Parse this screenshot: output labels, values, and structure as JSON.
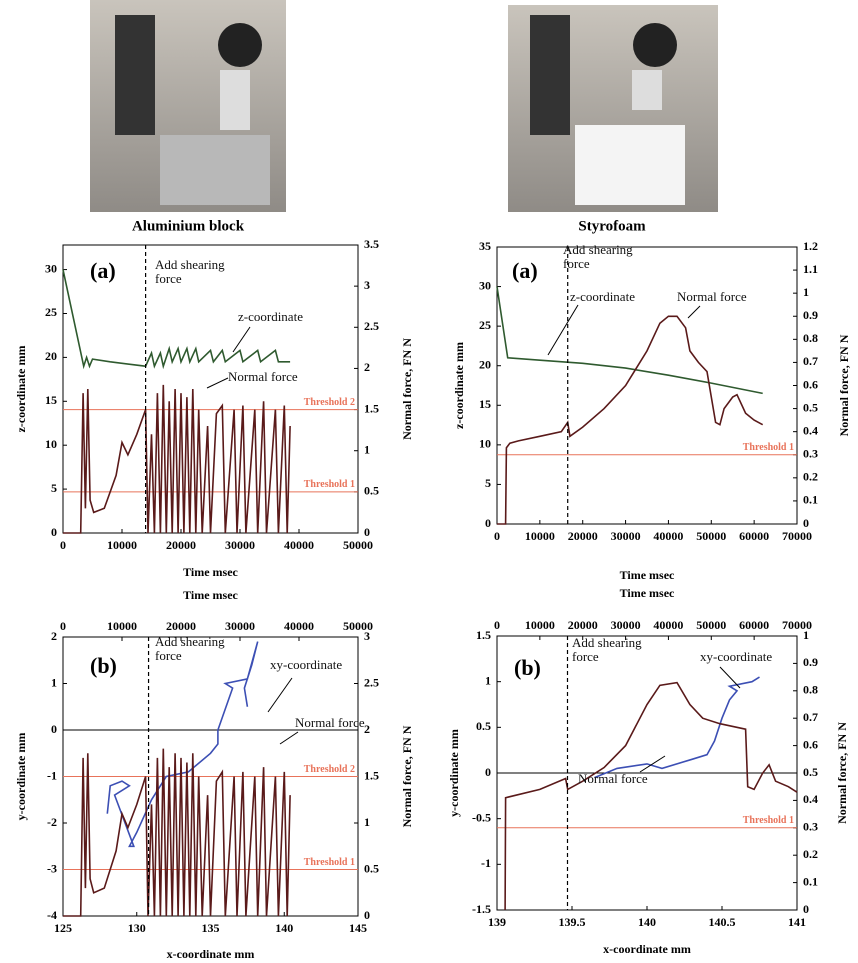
{
  "photos": [
    {
      "caption": "Aluminium block"
    },
    {
      "caption": "Styrofoam"
    }
  ],
  "chart_data": [
    {
      "type": "line",
      "panel_label": "(a)",
      "xlabel": "Time msec",
      "ylabel": "z-coordinate mm",
      "y2label": "Normal force, FN N",
      "xlim": [
        0,
        50000
      ],
      "xticks": [
        0,
        10000,
        20000,
        30000,
        40000,
        50000
      ],
      "ylim": [
        0,
        32.8
      ],
      "yticks": [
        0,
        5,
        10,
        15,
        20,
        25,
        30
      ],
      "y2lim": [
        0,
        3.5
      ],
      "y2ticks": [
        0,
        0.5,
        1,
        1.5,
        2,
        2.5,
        3,
        3.5
      ],
      "vline": {
        "x": 14000,
        "label": "Add shearing force"
      },
      "thresholds": [
        {
          "label": "Threshold 2",
          "value": 1.5,
          "axis": "y2",
          "color": "#e8735a"
        },
        {
          "label": "Threshold 1",
          "value": 0.5,
          "axis": "y2",
          "color": "#e8735a"
        }
      ],
      "series": [
        {
          "name": "z-coordinate",
          "color": "#2f5a2f",
          "axis": "y",
          "xaxis": "x",
          "x": [
            0,
            3500,
            4000,
            4500,
            5000,
            8000,
            14000,
            15000,
            15500,
            16500,
            17000,
            18000,
            18500,
            19500,
            20000,
            21000,
            21500,
            22500,
            23000,
            25000,
            25500,
            27000,
            27500,
            30000,
            30500,
            33000,
            33500,
            36000,
            36500,
            38500
          ],
          "values": [
            30,
            19,
            20,
            19,
            19.8,
            19.5,
            19,
            20.5,
            19,
            20.5,
            19,
            21,
            19.5,
            21,
            19.5,
            21,
            19.5,
            21,
            19.5,
            20.8,
            19.5,
            20.8,
            19.5,
            20.8,
            19.5,
            20.8,
            19.5,
            20.8,
            19.5,
            19.5
          ]
        },
        {
          "name": "Normal force",
          "color": "#5a1a1a",
          "axis": "y2",
          "xaxis": "x",
          "x": [
            0,
            3000,
            3400,
            3800,
            4200,
            4600,
            5200,
            7000,
            9000,
            10000,
            11000,
            12500,
            14000,
            14400,
            15000,
            15500,
            16000,
            16500,
            17000,
            17500,
            18000,
            18500,
            19000,
            19500,
            20000,
            20500,
            21000,
            21500,
            22000,
            22500,
            23000,
            23600,
            24500,
            25000,
            26000,
            27000,
            27500,
            29000,
            29500,
            30500,
            31000,
            32500,
            33000,
            34000,
            34500,
            36000,
            36500,
            37500,
            38000,
            38500
          ],
          "values": [
            0,
            0,
            1.7,
            0.3,
            1.75,
            0.4,
            0.25,
            0.3,
            0.7,
            1.1,
            0.95,
            1.2,
            1.5,
            0,
            1.2,
            0,
            1.7,
            0,
            1.8,
            0,
            1.6,
            0,
            1.75,
            0,
            1.7,
            0,
            1.65,
            0,
            1.75,
            0,
            1.5,
            0,
            1.3,
            0,
            1.45,
            1.55,
            0,
            1.5,
            0,
            1.55,
            0,
            1.5,
            0,
            1.6,
            0,
            1.5,
            0,
            1.55,
            0,
            1.3
          ]
        }
      ]
    },
    {
      "type": "line",
      "panel_label": "(a)",
      "xlabel": "Time msec",
      "ylabel": "z-coordinate mm",
      "y2label": "Normal force, FN N",
      "xlim": [
        0,
        70000
      ],
      "xticks": [
        0,
        10000,
        20000,
        30000,
        40000,
        50000,
        60000,
        70000
      ],
      "ylim": [
        0,
        35
      ],
      "yticks": [
        0,
        5,
        10,
        15,
        20,
        25,
        30,
        35
      ],
      "y2lim": [
        0,
        1.2
      ],
      "y2ticks": [
        0,
        0.1,
        0.2,
        0.3,
        0.4,
        0.5,
        0.6,
        0.7,
        0.8,
        0.9,
        1,
        1.1,
        1.2
      ],
      "vline": {
        "x": 16500,
        "label": "Add shearing force"
      },
      "thresholds": [
        {
          "label": "Threshold 1",
          "value": 0.3,
          "axis": "y2",
          "color": "#e8735a"
        }
      ],
      "series": [
        {
          "name": "z-coordinate",
          "color": "#2f5a2f",
          "axis": "y",
          "xaxis": "x",
          "x": [
            0,
            2500,
            10000,
            20000,
            30000,
            40000,
            50000,
            62000
          ],
          "values": [
            30,
            21,
            20.7,
            20.3,
            19.7,
            18.8,
            17.8,
            16.5
          ]
        },
        {
          "name": "Normal force",
          "color": "#5a1a1a",
          "axis": "y2",
          "xaxis": "x",
          "x": [
            0,
            2000,
            2200,
            3000,
            5000,
            10000,
            15000,
            16500,
            17000,
            20000,
            25000,
            30000,
            35000,
            38000,
            40000,
            42000,
            44000,
            45000,
            47000,
            49000,
            50000,
            51000,
            52000,
            53000,
            55000,
            56000,
            58000,
            60000,
            62000
          ],
          "values": [
            0,
            0,
            0.33,
            0.35,
            0.36,
            0.38,
            0.4,
            0.44,
            0.38,
            0.42,
            0.5,
            0.6,
            0.75,
            0.87,
            0.9,
            0.9,
            0.85,
            0.75,
            0.7,
            0.66,
            0.55,
            0.44,
            0.43,
            0.5,
            0.55,
            0.56,
            0.48,
            0.45,
            0.43
          ]
        }
      ]
    },
    {
      "type": "line",
      "panel_label": "(b)",
      "xlabel": "x-coordinate mm",
      "x2label": "Time msec",
      "ylabel": "y-coordinate mm",
      "y2label": "Normal force, FN N",
      "xlim": [
        125,
        145
      ],
      "xticks": [
        125,
        130,
        135,
        140,
        145
      ],
      "x2lim": [
        0,
        50000
      ],
      "x2ticks": [
        0,
        10000,
        20000,
        30000,
        40000,
        50000
      ],
      "ylim": [
        -4,
        2
      ],
      "yticks": [
        -4,
        -3,
        -2,
        -1,
        0,
        1,
        2
      ],
      "y2lim": [
        0,
        3
      ],
      "y2ticks": [
        0,
        0.5,
        1,
        1.5,
        2,
        2.5,
        3
      ],
      "vline": {
        "x": 130.8,
        "label": "Add shearing force"
      },
      "thresholds": [
        {
          "label": "Threshold 2",
          "value": 1.5,
          "axis": "y2",
          "color": "#e8735a"
        },
        {
          "label": "Threshold 1",
          "value": 0.5,
          "axis": "y2",
          "color": "#e8735a"
        }
      ],
      "series": [
        {
          "name": "xy-coordinate",
          "color": "#3c4fb4",
          "axis": "y",
          "xaxis": "x",
          "x": [
            128,
            128.2,
            129,
            129.5,
            128.5,
            129.8,
            129.5,
            130,
            131,
            132,
            133.5,
            135,
            135.5,
            135.5,
            136.5,
            136,
            137.5,
            138.2,
            137.8,
            137.3,
            137.5
          ],
          "values": [
            -1.8,
            -1.2,
            -1.1,
            -1.2,
            -1.4,
            -2.5,
            -2.5,
            -2.2,
            -1.5,
            -1,
            -0.9,
            -0.5,
            -0.3,
            0,
            0.9,
            1,
            1.1,
            1.9,
            1.4,
            0.9,
            0.5
          ]
        },
        {
          "name": "Normal force",
          "color": "#5a1a1a",
          "axis": "y2",
          "xaxis": "x2",
          "x": [
            0,
            3000,
            3400,
            3800,
            4200,
            4600,
            5200,
            7000,
            9000,
            10000,
            11000,
            12500,
            14000,
            14400,
            15000,
            15500,
            16000,
            16500,
            17000,
            17500,
            18000,
            18500,
            19000,
            19500,
            20000,
            20500,
            21000,
            21500,
            22000,
            22500,
            23000,
            23600,
            24500,
            25000,
            26000,
            27000,
            27500,
            29000,
            29500,
            30500,
            31000,
            32500,
            33000,
            34000,
            34500,
            36000,
            36500,
            37500,
            38000,
            38500
          ],
          "values": [
            0,
            0,
            1.7,
            0.3,
            1.75,
            0.4,
            0.25,
            0.3,
            0.7,
            1.1,
            0.95,
            1.2,
            1.5,
            0,
            1.2,
            0,
            1.7,
            0,
            1.8,
            0,
            1.6,
            0,
            1.75,
            0,
            1.7,
            0,
            1.65,
            0,
            1.75,
            0,
            1.5,
            0,
            1.3,
            0,
            1.45,
            1.55,
            0,
            1.5,
            0,
            1.55,
            0,
            1.5,
            0,
            1.6,
            0,
            1.5,
            0,
            1.55,
            0,
            1.3
          ]
        }
      ]
    },
    {
      "type": "line",
      "panel_label": "(b)",
      "xlabel": "x-coordinate mm",
      "x2label": "Time msec",
      "ylabel": "y-coordinate mm",
      "y2label": "Normal force, FN N",
      "xlim": [
        139,
        141
      ],
      "xticks": [
        139,
        139.5,
        140,
        140.5,
        141
      ],
      "x2lim": [
        0,
        70000
      ],
      "x2ticks": [
        0,
        10000,
        20000,
        30000,
        40000,
        50000,
        60000,
        70000
      ],
      "ylim": [
        -1.5,
        1.5
      ],
      "yticks": [
        -1.5,
        -1,
        -0.5,
        0,
        0.5,
        1,
        1.5
      ],
      "y2lim": [
        0,
        1
      ],
      "y2ticks": [
        0,
        0.1,
        0.2,
        0.3,
        0.4,
        0.5,
        0.6,
        0.7,
        0.8,
        0.9,
        1
      ],
      "vline": {
        "x": 139.47,
        "label": "Add shearing force"
      },
      "thresholds": [
        {
          "label": "Threshold 1",
          "value": 0.3,
          "axis": "y2",
          "color": "#e8735a"
        }
      ],
      "series": [
        {
          "name": "xy-coordinate",
          "color": "#3c4fb4",
          "axis": "y",
          "xaxis": "x",
          "x": [
            139.65,
            139.8,
            140,
            140.1,
            140.3,
            140.4,
            140.45,
            140.5,
            140.55,
            140.6,
            140.55,
            140.7,
            140.75
          ],
          "values": [
            -0.05,
            0.05,
            0.1,
            0.05,
            0.15,
            0.2,
            0.35,
            0.6,
            0.8,
            0.9,
            0.95,
            1,
            1.05
          ]
        },
        {
          "name": "Normal force",
          "color": "#5a1a1a",
          "axis": "y2",
          "xaxis": "x2",
          "x": [
            1900,
            2000,
            10000,
            16000,
            16500,
            20000,
            25000,
            30000,
            35000,
            38000,
            42000,
            45000,
            48000,
            52000,
            58000,
            58500,
            60000,
            62000,
            63500,
            65000,
            68000,
            70000
          ],
          "values": [
            0,
            0.41,
            0.44,
            0.48,
            0.44,
            0.47,
            0.52,
            0.6,
            0.75,
            0.82,
            0.83,
            0.75,
            0.7,
            0.68,
            0.66,
            0.45,
            0.44,
            0.5,
            0.53,
            0.47,
            0.45,
            0.43
          ]
        }
      ]
    }
  ]
}
